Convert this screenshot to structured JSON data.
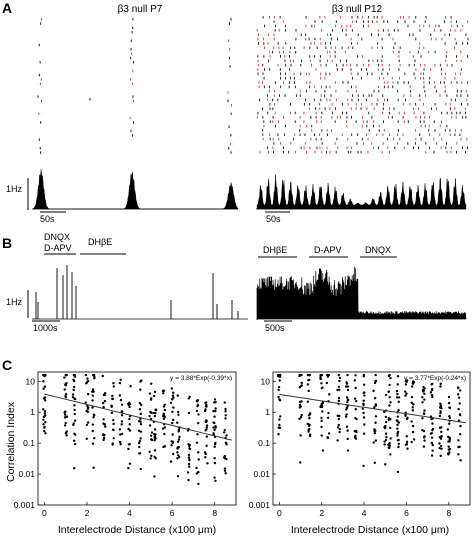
{
  "figure": {
    "panels": [
      "A",
      "B",
      "C"
    ],
    "a_titles": {
      "left": "β3 null P7",
      "right": "β3 null P12"
    },
    "hz_label": "1Hz",
    "scale_a_left": "50s",
    "scale_a_right": "50s",
    "scale_b_left": "1000s",
    "scale_b_right": "500s",
    "b_left_drugs": {
      "line1": "DNQX",
      "line2": "D-APV",
      "line3": "DHβE"
    },
    "b_right_drugs": {
      "d1": "DHβE",
      "d2": "D-APV",
      "d3": "DNQX"
    },
    "colors": {
      "raster_red": "#c83a3a",
      "ink": "#000000"
    }
  },
  "chart_data": [
    {
      "type": "scatter",
      "panel": "C-left",
      "equation": "y = 3.88*Exp(-0.39*x)",
      "fit": {
        "a": 3.88,
        "b": -0.39
      },
      "xlabel": "Interelectrode Distance (x100 μm)",
      "ylabel": "Correlation Index",
      "xlim": [
        -0.3,
        9
      ],
      "ylim": [
        0.001,
        20
      ],
      "yscale": "log",
      "x_ticks": [
        "0",
        "2",
        "4",
        "6",
        "8"
      ],
      "y_ticks": [
        "0.001",
        "0.01",
        "0.1",
        "1",
        "10"
      ],
      "x_columns": [
        0,
        1,
        1.4,
        2,
        2.3,
        2.8,
        3.2,
        3.6,
        4,
        4.5,
        5,
        5.2,
        5.6,
        6,
        6.3,
        6.8,
        7.2,
        7.6,
        8,
        8.5
      ]
    },
    {
      "type": "scatter",
      "panel": "C-right",
      "equation": "y = 3.77*Exp(-0.24*x)",
      "fit": {
        "a": 3.77,
        "b": -0.24
      },
      "xlabel": "Interelectrode Distance (x100 μm)",
      "ylabel": "",
      "xlim": [
        -0.3,
        9
      ],
      "ylim": [
        0.001,
        20
      ],
      "yscale": "log",
      "x_ticks": [
        "0",
        "2",
        "4",
        "6",
        "8"
      ],
      "y_ticks": [
        "0.001",
        "0.01",
        "0.1",
        "1",
        "10"
      ],
      "x_columns": [
        0,
        1,
        1.4,
        2,
        2.3,
        2.8,
        3.2,
        3.6,
        4,
        4.5,
        5,
        5.2,
        5.6,
        6,
        6.3,
        6.8,
        7.2,
        7.6,
        8,
        8.5
      ]
    }
  ]
}
